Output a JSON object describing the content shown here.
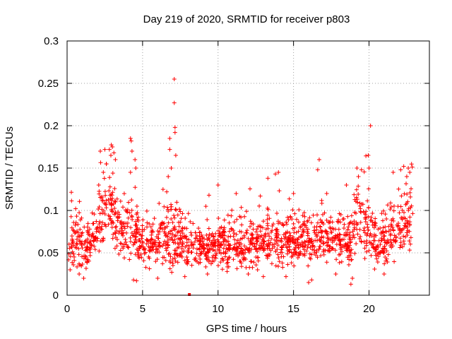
{
  "chart_data": {
    "type": "scatter",
    "title": "Day 219 of 2020, SRMTID for receiver p803",
    "xlabel": "GPS time / hours",
    "ylabel": "SRMTID / TECUs",
    "xlim": [
      0,
      24
    ],
    "ylim": [
      0,
      0.3
    ],
    "x_ticks": [
      0,
      5,
      10,
      15,
      20
    ],
    "y_ticks": [
      0,
      0.05,
      0.1,
      0.15,
      0.2,
      0.25,
      0.3
    ],
    "x_tick_labels": [
      "0",
      "5",
      "10",
      "15",
      "20"
    ],
    "y_tick_labels": [
      "0",
      "0.05",
      "0.1",
      "0.15",
      "0.2",
      "0.25",
      "0.3"
    ],
    "grid": true,
    "marker": "+",
    "color": "#ff0000",
    "envelope": [
      {
        "x": 0.0,
        "center": 0.06,
        "spread": 0.02
      },
      {
        "x": 0.5,
        "center": 0.065,
        "spread": 0.02
      },
      {
        "x": 1.0,
        "center": 0.06,
        "spread": 0.02
      },
      {
        "x": 1.5,
        "center": 0.06,
        "spread": 0.018
      },
      {
        "x": 2.0,
        "center": 0.08,
        "spread": 0.025
      },
      {
        "x": 2.5,
        "center": 0.1,
        "spread": 0.03
      },
      {
        "x": 3.0,
        "center": 0.1,
        "spread": 0.03
      },
      {
        "x": 3.5,
        "center": 0.075,
        "spread": 0.022
      },
      {
        "x": 4.0,
        "center": 0.085,
        "spread": 0.028
      },
      {
        "x": 4.5,
        "center": 0.07,
        "spread": 0.02
      },
      {
        "x": 5.0,
        "center": 0.065,
        "spread": 0.018
      },
      {
        "x": 5.5,
        "center": 0.06,
        "spread": 0.018
      },
      {
        "x": 6.0,
        "center": 0.06,
        "spread": 0.02
      },
      {
        "x": 6.5,
        "center": 0.065,
        "spread": 0.022
      },
      {
        "x": 7.0,
        "center": 0.065,
        "spread": 0.025
      },
      {
        "x": 7.5,
        "center": 0.065,
        "spread": 0.022
      },
      {
        "x": 8.0,
        "center": 0.055,
        "spread": 0.018
      },
      {
        "x": 9.0,
        "center": 0.058,
        "spread": 0.018
      },
      {
        "x": 10.0,
        "center": 0.06,
        "spread": 0.018
      },
      {
        "x": 11.0,
        "center": 0.058,
        "spread": 0.018
      },
      {
        "x": 12.0,
        "center": 0.057,
        "spread": 0.018
      },
      {
        "x": 13.0,
        "center": 0.06,
        "spread": 0.018
      },
      {
        "x": 14.0,
        "center": 0.065,
        "spread": 0.02
      },
      {
        "x": 15.0,
        "center": 0.062,
        "spread": 0.018
      },
      {
        "x": 16.0,
        "center": 0.065,
        "spread": 0.02
      },
      {
        "x": 17.0,
        "center": 0.07,
        "spread": 0.02
      },
      {
        "x": 18.0,
        "center": 0.065,
        "spread": 0.02
      },
      {
        "x": 18.7,
        "center": 0.06,
        "spread": 0.02
      },
      {
        "x": 19.3,
        "center": 0.09,
        "spread": 0.025
      },
      {
        "x": 20.0,
        "center": 0.075,
        "spread": 0.022
      },
      {
        "x": 20.5,
        "center": 0.055,
        "spread": 0.018
      },
      {
        "x": 21.0,
        "center": 0.058,
        "spread": 0.018
      },
      {
        "x": 21.5,
        "center": 0.07,
        "spread": 0.02
      },
      {
        "x": 22.0,
        "center": 0.08,
        "spread": 0.025
      },
      {
        "x": 22.5,
        "center": 0.09,
        "spread": 0.025
      },
      {
        "x": 22.8,
        "center": 0.085,
        "spread": 0.025
      }
    ],
    "outliers": [
      [
        7.1,
        0.255
      ],
      [
        7.1,
        0.227
      ],
      [
        7.15,
        0.198
      ],
      [
        7.15,
        0.192
      ],
      [
        7.2,
        0.165
      ],
      [
        6.8,
        0.185
      ],
      [
        6.8,
        0.172
      ],
      [
        6.9,
        0.15
      ],
      [
        6.7,
        0.14
      ],
      [
        6.6,
        0.122
      ],
      [
        4.2,
        0.185
      ],
      [
        4.25,
        0.182
      ],
      [
        4.3,
        0.17
      ],
      [
        4.5,
        0.16
      ],
      [
        4.55,
        0.15
      ],
      [
        4.2,
        0.145
      ],
      [
        3.0,
        0.175
      ],
      [
        3.1,
        0.168
      ],
      [
        2.8,
        0.172
      ],
      [
        2.9,
        0.165
      ],
      [
        2.2,
        0.17
      ],
      [
        2.5,
        0.172
      ],
      [
        3.2,
        0.16
      ],
      [
        2.6,
        0.155
      ],
      [
        2.4,
        0.145
      ],
      [
        20.1,
        0.2
      ],
      [
        19.95,
        0.165
      ],
      [
        20.0,
        0.15
      ],
      [
        19.2,
        0.15
      ],
      [
        19.5,
        0.148
      ],
      [
        19.3,
        0.14
      ],
      [
        22.3,
        0.152
      ],
      [
        22.6,
        0.15
      ],
      [
        22.1,
        0.148
      ],
      [
        22.7,
        0.145
      ],
      [
        21.6,
        0.145
      ],
      [
        22.5,
        0.14
      ],
      [
        16.7,
        0.16
      ],
      [
        16.6,
        0.148
      ],
      [
        14.0,
        0.145
      ],
      [
        13.8,
        0.143
      ],
      [
        13.3,
        0.138
      ],
      [
        10.0,
        0.13
      ],
      [
        11.2,
        0.12
      ],
      [
        9.4,
        0.118
      ],
      [
        12.8,
        0.117
      ],
      [
        15.0,
        0.12
      ],
      [
        18.5,
        0.13
      ],
      [
        17.2,
        0.12
      ],
      [
        1.1,
        0.02
      ],
      [
        0.8,
        0.025
      ],
      [
        4.4,
        0.018
      ],
      [
        4.6,
        0.017
      ],
      [
        6.0,
        0.02
      ],
      [
        7.8,
        0.022
      ],
      [
        18.8,
        0.013
      ],
      [
        18.9,
        0.02
      ],
      [
        16.0,
        0.015
      ],
      [
        16.2,
        0.018
      ],
      [
        13.0,
        0.022
      ],
      [
        21.0,
        0.025
      ],
      [
        9.3,
        0.025
      ],
      [
        12.0,
        0.025
      ],
      [
        14.5,
        0.022
      ],
      [
        0.2,
        0.03
      ],
      [
        10.6,
        0.028
      ],
      [
        17.8,
        0.025
      ]
    ],
    "markers_at_zero": [
      [
        8.1,
        0.0
      ]
    ],
    "point_count": 1650,
    "x_max_data": 22.9
  }
}
